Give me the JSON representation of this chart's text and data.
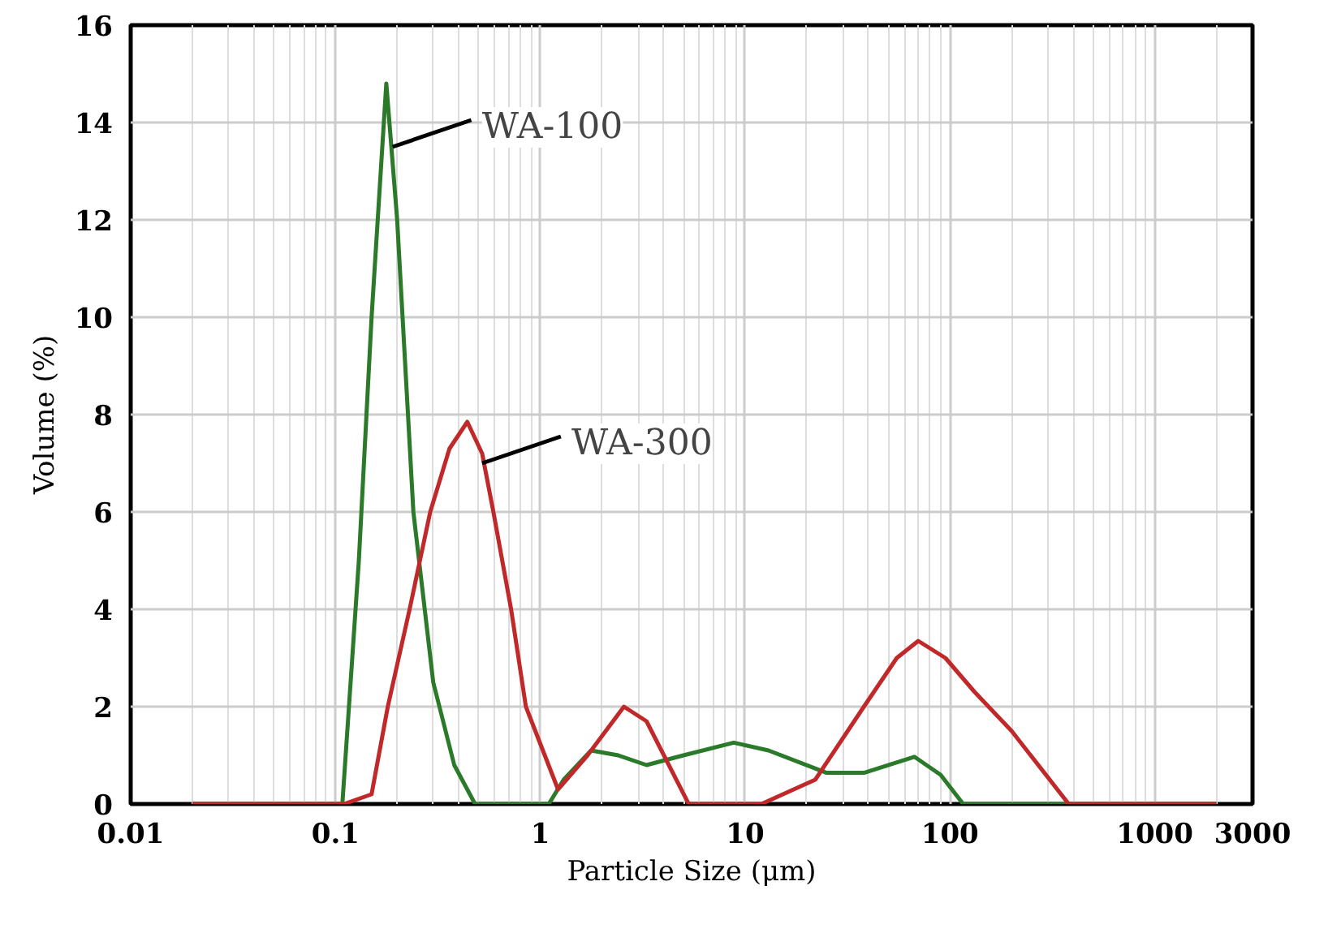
{
  "chart_data": {
    "type": "line",
    "xlabel": "Particle Size (μm)",
    "ylabel": "Volume (%)",
    "log": "x",
    "xlim": [
      0.01,
      3000
    ],
    "ylim": [
      0,
      16
    ],
    "xticks": [
      0.01,
      0.1,
      1,
      10,
      100,
      1000,
      3000
    ],
    "yticks": [
      0,
      2,
      4,
      6,
      8,
      10,
      12,
      14,
      16
    ],
    "grid": true,
    "marker": "none",
    "line_style": "solid",
    "series": [
      {
        "color": "#2a7a2a",
        "x": [
          0.02,
          0.108,
          0.13,
          0.15,
          0.177,
          0.2,
          0.24,
          0.3,
          0.38,
          0.48,
          1.1,
          1.3,
          1.77,
          2.4,
          3.3,
          5,
          8.8,
          13,
          25,
          38,
          67,
          90,
          116,
          2000
        ],
        "values": [
          0,
          0,
          5,
          10,
          14.8,
          12,
          6,
          2.5,
          0.8,
          0,
          0,
          0.5,
          1.1,
          1,
          0.8,
          1,
          1.26,
          1.1,
          0.64,
          0.64,
          0.97,
          0.6,
          0,
          0
        ]
      },
      {
        "color": "#c0282a",
        "x": [
          0.02,
          0.11,
          0.15,
          0.18,
          0.23,
          0.29,
          0.36,
          0.44,
          0.52,
          0.59,
          0.72,
          0.85,
          1.22,
          1.7,
          2.56,
          3.3,
          5.3,
          12,
          22,
          38,
          55,
          70,
          95,
          132,
          200,
          380,
          2000
        ],
        "values": [
          0,
          0,
          0.2,
          2,
          4,
          6,
          7.3,
          7.85,
          7.2,
          6,
          4,
          2,
          0.3,
          1,
          2,
          1.7,
          0,
          0,
          0.5,
          2,
          3,
          3.35,
          3,
          2.3,
          1.5,
          0,
          0
        ]
      }
    ],
    "annotations": [
      {
        "text": "WA-100",
        "x": 0.19,
        "y": 13.5
      },
      {
        "text": "WA-300",
        "x": 0.52,
        "y": 7
      }
    ]
  }
}
